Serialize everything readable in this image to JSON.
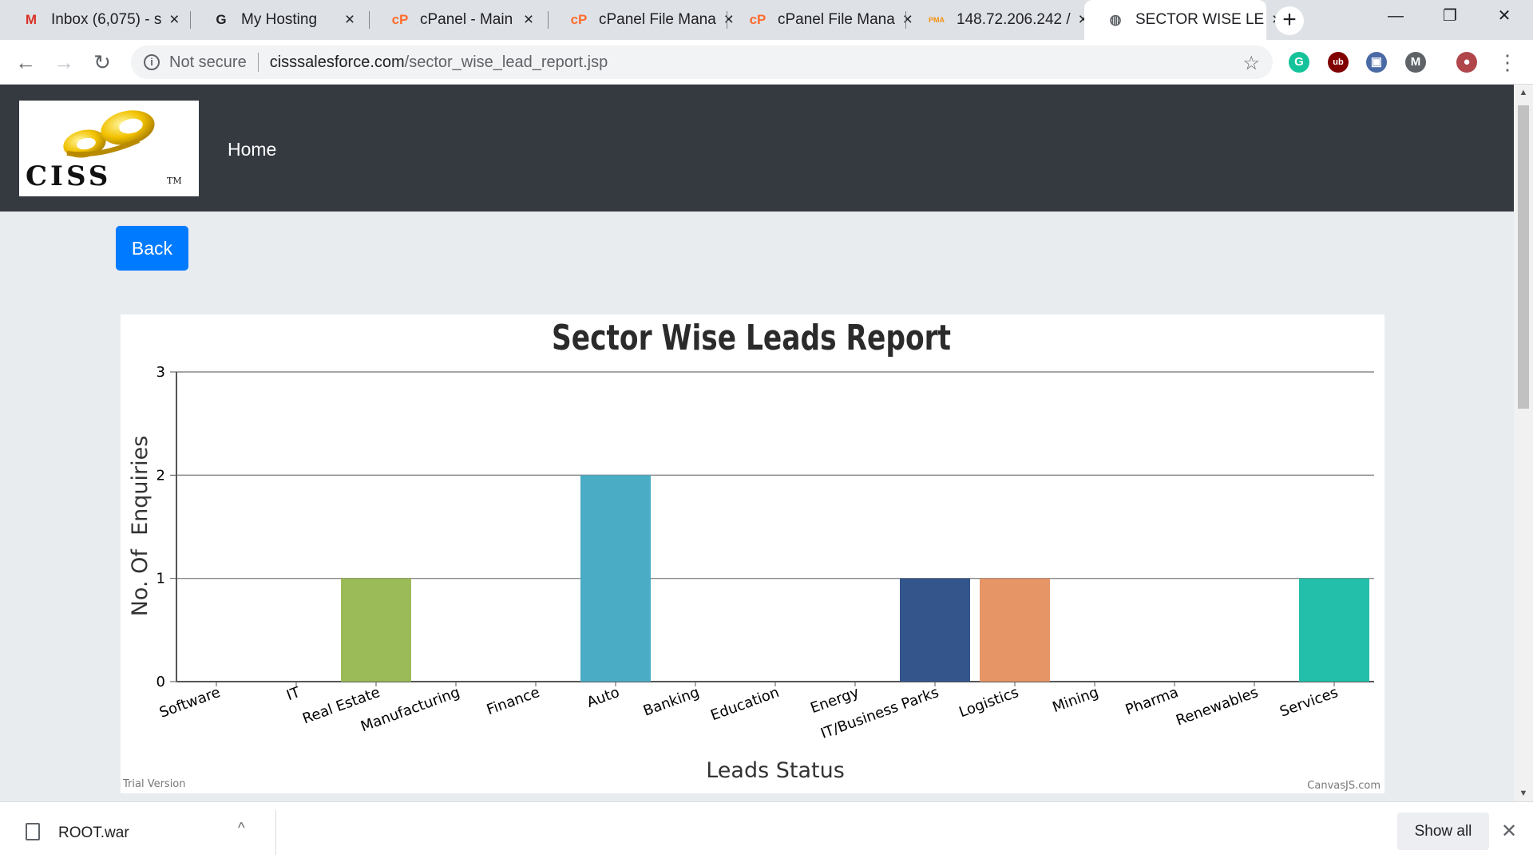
{
  "browser": {
    "tabs": [
      {
        "title": "Inbox (6,075) - s",
        "favicon": "gmail-icon",
        "favicon_char": "M",
        "favicon_color": "#d93025"
      },
      {
        "title": "My Hosting",
        "favicon": "g-hosting-icon",
        "favicon_char": "G",
        "favicon_color": "#202124"
      },
      {
        "title": "cPanel - Main",
        "favicon": "cpanel-icon",
        "favicon_char": "cP",
        "favicon_color": "#ff6c2c"
      },
      {
        "title": "cPanel File Mana",
        "favicon": "cpanel-icon",
        "favicon_char": "cP",
        "favicon_color": "#ff6c2c"
      },
      {
        "title": "cPanel File Mana",
        "favicon": "cpanel-icon",
        "favicon_char": "cP",
        "favicon_color": "#ff6c2c"
      },
      {
        "title": "148.72.206.242 /",
        "favicon": "phpmyadmin-icon",
        "favicon_char": "PMA",
        "favicon_color": "#f29111"
      },
      {
        "title": "SECTOR WISE LE",
        "favicon": "globe-icon",
        "favicon_char": "◍",
        "favicon_color": "#5f6368",
        "active": true
      }
    ],
    "new_tab_label": "+",
    "window_controls": {
      "minimize": "—",
      "restore": "❐",
      "close": "✕"
    },
    "address": {
      "security_label": "Not secure",
      "host": "cisssalesforce.com",
      "path": "/sector_wise_lead_report.jsp"
    },
    "nav": {
      "back": "←",
      "forward": "→",
      "reload": "↻"
    },
    "extensions": [
      {
        "name": "grammarly-icon",
        "char": "G",
        "color": "#15c39a"
      },
      {
        "name": "ublock-icon",
        "char": "ub",
        "color": "#800000"
      },
      {
        "name": "screen-capture-icon",
        "char": "▣",
        "color": "#4a6aa5"
      },
      {
        "name": "m-extension-icon",
        "char": "M",
        "color": "#5f6368"
      },
      {
        "name": "profile-avatar-icon",
        "char": "●",
        "color": "#b0464a"
      }
    ],
    "menu_icon": "⋮"
  },
  "site": {
    "logo_text": "CISS",
    "logo_tm": "TM",
    "nav_home": "Home",
    "back_button": "Back"
  },
  "chart_data": {
    "type": "bar",
    "title": "Sector Wise Leads Report",
    "xlabel": "Leads Status",
    "ylabel": "No. Of  Enquiries",
    "ylim": [
      0,
      3
    ],
    "yticks": [
      0,
      1,
      2,
      3
    ],
    "grid": true,
    "categories": [
      "Software",
      "IT",
      "Real Estate",
      "Manufacturing",
      "Finance",
      "Auto",
      "Banking",
      "Education",
      "Energy",
      "IT/Business Parks",
      "Logistics",
      "Mining",
      "Pharma",
      "Renewables",
      "Services"
    ],
    "values": [
      0,
      0,
      1,
      0,
      0,
      2,
      0,
      0,
      0,
      1,
      1,
      0,
      0,
      0,
      1
    ],
    "colors": [
      "#4f81bc",
      "#c0504e",
      "#9bbb58",
      "#23bfaa",
      "#8064a1",
      "#4aacc5",
      "#f79647",
      "#7f6084",
      "#77a033",
      "#33558b",
      "#e59566",
      "#20b2aa",
      "#dd6c8e",
      "#5f9ea0",
      "#24bfaa"
    ],
    "watermark_left": "Trial Version",
    "watermark_right": "CanvasJS.com"
  },
  "downloads": {
    "file_name": "ROOT.war",
    "caret": "^",
    "show_all": "Show all",
    "close": "✕"
  }
}
